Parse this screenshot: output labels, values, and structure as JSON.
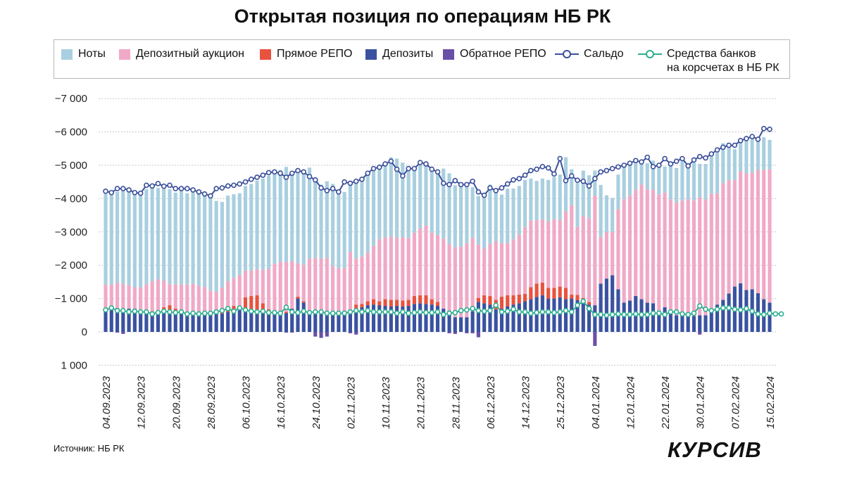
{
  "title": "Открытая позиция по операциям НБ РК",
  "source": "Источник: НБ РК",
  "brand": "КУРСИВ",
  "legend": {
    "notes": "Ноты",
    "auction": "Депозитный аукцион",
    "repo": "Прямое РЕПО",
    "deposits": "Депозиты",
    "reverse_repo": "Обратное РЕПО",
    "saldo": "Сальдо",
    "reserves_line1": "Средства банков",
    "reserves_line2": "на корсчетах в НБ РК"
  },
  "colors": {
    "notes": "#a9cfe0",
    "auction": "#f0a9c6",
    "repo": "#e8523f",
    "deposits": "#3a52a0",
    "reverse_repo": "#6a4fa6",
    "saldo": "#3b4f9a",
    "reserves": "#2fae91",
    "grid": "#c8c8c8"
  },
  "chart_data": {
    "type": "bar",
    "stacked": true,
    "y_axis_reversed": true,
    "ylim": [
      -7000,
      1000
    ],
    "yticks": [
      {
        "value": -7000,
        "label": "−7 000"
      },
      {
        "value": -6000,
        "label": "−6 000"
      },
      {
        "value": -5000,
        "label": "−5 000"
      },
      {
        "value": -4000,
        "label": "−4 000"
      },
      {
        "value": -3000,
        "label": "−3 000"
      },
      {
        "value": -2000,
        "label": "−2 000"
      },
      {
        "value": -1000,
        "label": "−1 000"
      },
      {
        "value": 0,
        "label": "0"
      },
      {
        "value": 1000,
        "label": "1 000"
      }
    ],
    "x_label_ticks": [
      {
        "index": 0,
        "label": "04.09.2023"
      },
      {
        "index": 6,
        "label": "12.09.2023"
      },
      {
        "index": 12,
        "label": "20.09.2023"
      },
      {
        "index": 18,
        "label": "28.09.2023"
      },
      {
        "index": 24,
        "label": "06.10.2023"
      },
      {
        "index": 30,
        "label": "16.10.2023"
      },
      {
        "index": 36,
        "label": "24.10.2023"
      },
      {
        "index": 42,
        "label": "02.11.2023"
      },
      {
        "index": 48,
        "label": "10.11.2023"
      },
      {
        "index": 54,
        "label": "20.11.2023"
      },
      {
        "index": 60,
        "label": "28.11.2023"
      },
      {
        "index": 66,
        "label": "06.12.2023"
      },
      {
        "index": 72,
        "label": "14.12.2023"
      },
      {
        "index": 78,
        "label": "25.12.2023"
      },
      {
        "index": 84,
        "label": "04.01.2024"
      },
      {
        "index": 90,
        "label": "12.01.2024"
      },
      {
        "index": 96,
        "label": "22.01.2024"
      },
      {
        "index": 102,
        "label": "30.01.2024"
      },
      {
        "index": 108,
        "label": "07.02.2024"
      },
      {
        "index": 114,
        "label": "15.02.2024"
      }
    ],
    "series": [
      {
        "name": "Депозиты",
        "key": "deposits",
        "values": [
          -620,
          -650,
          -720,
          -700,
          -700,
          -700,
          -650,
          -600,
          -580,
          -600,
          -580,
          -600,
          -620,
          -600,
          -580,
          -580,
          -560,
          -560,
          -600,
          -600,
          -550,
          -600,
          -640,
          -660,
          -660,
          -620,
          -640,
          -620,
          -600,
          -600,
          -600,
          -560,
          -700,
          -1000,
          -880,
          -650,
          -640,
          -620,
          -620,
          -580,
          -580,
          -600,
          -640,
          -680,
          -740,
          -800,
          -820,
          -800,
          -780,
          -760,
          -780,
          -760,
          -780,
          -840,
          -860,
          -840,
          -820,
          -780,
          -700,
          -640,
          -440,
          -440,
          -440,
          -620,
          -900,
          -860,
          -820,
          -680,
          -700,
          -760,
          -820,
          -860,
          -920,
          -980,
          -1050,
          -1100,
          -1000,
          -1000,
          -1040,
          -980,
          -1000,
          -950,
          -900,
          -820,
          -800,
          -1450,
          -1600,
          -1700,
          -1280,
          -880,
          -940,
          -1080,
          -980,
          -880,
          -860,
          -640,
          -740,
          -580,
          -500,
          -480,
          -480,
          -480,
          -500,
          -500,
          -620,
          -820,
          -960,
          -1150,
          -1360,
          -1460,
          -1260,
          -1280,
          -1160,
          -980,
          -880,
          -700,
          -960
        ]
      },
      {
        "name": "Прямое РЕПО",
        "key": "repo",
        "values": [
          0,
          0,
          0,
          0,
          0,
          0,
          0,
          0,
          -40,
          0,
          -160,
          -200,
          -80,
          0,
          0,
          0,
          0,
          0,
          0,
          0,
          -80,
          -120,
          -140,
          -120,
          -380,
          -460,
          -460,
          -240,
          -80,
          0,
          0,
          -40,
          0,
          -60,
          -40,
          0,
          0,
          0,
          0,
          0,
          0,
          0,
          0,
          -140,
          -100,
          -120,
          -160,
          -120,
          -200,
          -200,
          -180,
          -180,
          -180,
          -240,
          -240,
          -260,
          -160,
          -120,
          0,
          0,
          0,
          0,
          0,
          0,
          -120,
          -240,
          -260,
          -280,
          -360,
          -340,
          -280,
          -260,
          -220,
          -360,
          -400,
          -380,
          -320,
          -320,
          -320,
          -340,
          -120,
          -160,
          -120,
          -80,
          0,
          0,
          0,
          0,
          0,
          0,
          0,
          0,
          0,
          0,
          0,
          0,
          0,
          0,
          0,
          0,
          0,
          0,
          0,
          0,
          0,
          0,
          0,
          0,
          0,
          0,
          0,
          0,
          0,
          0,
          0,
          0,
          0
        ]
      },
      {
        "name": "Депозитный аукцион",
        "key": "auction",
        "values": [
          -800,
          -760,
          -760,
          -740,
          -700,
          -640,
          -680,
          -820,
          -900,
          -980,
          -800,
          -640,
          -720,
          -820,
          -840,
          -860,
          -820,
          -780,
          -640,
          -600,
          -700,
          -800,
          -840,
          -920,
          -800,
          -760,
          -780,
          -1000,
          -1220,
          -1440,
          -1500,
          -1500,
          -1420,
          -1000,
          -1100,
          -1550,
          -1580,
          -1580,
          -1600,
          -1400,
          -1320,
          -1320,
          -1760,
          -1380,
          -1420,
          -1460,
          -1600,
          -1860,
          -1860,
          -1900,
          -1860,
          -1900,
          -1860,
          -1900,
          -2000,
          -2100,
          -2000,
          -2000,
          -2100,
          -2000,
          -2100,
          -2120,
          -2220,
          -2200,
          -1600,
          -1400,
          -1560,
          -1760,
          -1600,
          -1560,
          -1680,
          -1800,
          -2000,
          -2000,
          -1900,
          -1900,
          -2000,
          -2060,
          -2000,
          -2300,
          -2680,
          -2040,
          -2460,
          -2500,
          -3280,
          -1400,
          -1400,
          -1300,
          -2400,
          -3100,
          -3150,
          -3180,
          -3440,
          -3400,
          -3400,
          -3480,
          -3440,
          -3400,
          -3380,
          -3460,
          -3500,
          -3460,
          -3540,
          -3460,
          -3520,
          -3340,
          -3500,
          -3400,
          -3200,
          -3360,
          -3500,
          -3500,
          -3700,
          -3880,
          -4000,
          -4280,
          -4320
        ]
      },
      {
        "name": "Ноты",
        "key": "notes",
        "values": [
          -2720,
          -2790,
          -2720,
          -2790,
          -2800,
          -2860,
          -2770,
          -2860,
          -2880,
          -2740,
          -2750,
          -2840,
          -2760,
          -2860,
          -2740,
          -2820,
          -2800,
          -2760,
          -2790,
          -2730,
          -2570,
          -2570,
          -2510,
          -2460,
          -2540,
          -2600,
          -2660,
          -2740,
          -2790,
          -2760,
          -2760,
          -2850,
          -2600,
          -2800,
          -2790,
          -2730,
          -2310,
          -2220,
          -2300,
          -2460,
          -2300,
          -2280,
          -2100,
          -2290,
          -2330,
          -2420,
          -2320,
          -2220,
          -2200,
          -2380,
          -2380,
          -2240,
          -2160,
          -1880,
          -1900,
          -1860,
          -1880,
          -1960,
          -2100,
          -2120,
          -1860,
          -1840,
          -1830,
          -1520,
          -1460,
          -1600,
          -1780,
          -1480,
          -1460,
          -1640,
          -1520,
          -1460,
          -1420,
          -1260,
          -1180,
          -1220,
          -1240,
          -1270,
          -1360,
          -1620,
          -1080,
          -1320,
          -1360,
          -1300,
          -760,
          -1560,
          -1100,
          -1020,
          -1040,
          -990,
          -980,
          -840,
          -630,
          -780,
          -880,
          -860,
          -780,
          -1120,
          -1040,
          -1180,
          -1060,
          -1140,
          -1000,
          -1080,
          -1120,
          -1220,
          -1200,
          -1040,
          -920,
          -880,
          -1040,
          -1020,
          -920,
          -980,
          -880,
          -960,
          -810
        ]
      },
      {
        "name": "Обратное РЕПО",
        "key": "reverse_repo",
        "values": [
          0,
          0,
          20,
          60,
          0,
          0,
          0,
          0,
          0,
          0,
          0,
          0,
          0,
          0,
          0,
          0,
          0,
          0,
          0,
          0,
          0,
          0,
          0,
          0,
          0,
          0,
          0,
          0,
          0,
          0,
          0,
          20,
          20,
          0,
          0,
          0,
          140,
          180,
          140,
          0,
          0,
          0,
          40,
          80,
          0,
          0,
          0,
          0,
          0,
          0,
          0,
          0,
          0,
          0,
          0,
          0,
          0,
          0,
          0,
          40,
          60,
          0,
          40,
          40,
          160,
          0,
          0,
          0,
          0,
          0,
          0,
          0,
          0,
          0,
          0,
          0,
          0,
          0,
          0,
          0,
          0,
          0,
          0,
          0,
          420,
          0,
          0,
          0,
          0,
          0,
          0,
          0,
          0,
          0,
          0,
          0,
          0,
          0,
          0,
          0,
          0,
          0,
          80,
          0,
          0,
          0,
          0,
          0,
          0,
          0,
          0,
          0,
          0,
          0,
          0,
          0,
          0
        ]
      },
      {
        "name": "Сальдо",
        "key": "saldo",
        "type": "line",
        "values": [
          -4220,
          -4180,
          -4300,
          -4300,
          -4260,
          -4180,
          -4160,
          -4400,
          -4380,
          -4450,
          -4370,
          -4400,
          -4300,
          -4300,
          -4300,
          -4260,
          -4200,
          -4140,
          -4080,
          -4300,
          -4320,
          -4380,
          -4400,
          -4440,
          -4500,
          -4580,
          -4640,
          -4700,
          -4780,
          -4800,
          -4760,
          -4640,
          -4760,
          -4840,
          -4800,
          -4660,
          -4560,
          -4320,
          -4240,
          -4300,
          -4200,
          -4500,
          -4460,
          -4520,
          -4580,
          -4760,
          -4900,
          -4940,
          -5040,
          -5120,
          -4880,
          -4680,
          -4900,
          -4900,
          -5080,
          -5040,
          -4880,
          -4800,
          -4460,
          -4420,
          -4540,
          -4420,
          -4420,
          -4520,
          -4200,
          -4100,
          -4320,
          -4240,
          -4320,
          -4440,
          -4560,
          -4600,
          -4700,
          -4840,
          -4880,
          -4960,
          -4920,
          -4740,
          -5200,
          -4540,
          -4680,
          -4550,
          -4520,
          -4380,
          -4600,
          -4800,
          -4840,
          -4900,
          -4950,
          -5000,
          -5060,
          -5140,
          -5100,
          -5240,
          -4960,
          -5000,
          -5200,
          -5040,
          -5120,
          -5200,
          -4980,
          -5160,
          -5260,
          -5220,
          -5340,
          -5460,
          -5540,
          -5600,
          -5600,
          -5740,
          -5800,
          -5860,
          -5780,
          -6100,
          -6080
        ]
      },
      {
        "name": "Средства банков на корсчетах в НБ РК",
        "key": "reserves",
        "type": "line",
        "values": [
          -660,
          -720,
          -640,
          -640,
          -600,
          -620,
          -600,
          -600,
          -540,
          -580,
          -620,
          -600,
          -580,
          -600,
          -540,
          -560,
          -540,
          -560,
          -560,
          -600,
          -640,
          -700,
          -620,
          -720,
          -660,
          -620,
          -600,
          -620,
          -580,
          -580,
          -560,
          -740,
          -600,
          -580,
          -620,
          -580,
          -600,
          -600,
          -560,
          -560,
          -560,
          -560,
          -600,
          -640,
          -600,
          -640,
          -600,
          -600,
          -600,
          -600,
          -560,
          -600,
          -560,
          -580,
          -600,
          -580,
          -580,
          -600,
          -520,
          -560,
          -580,
          -640,
          -660,
          -700,
          -640,
          -620,
          -640,
          -800,
          -600,
          -620,
          -680,
          -600,
          -600,
          -560,
          -580,
          -600,
          -600,
          -580,
          -600,
          -640,
          -600,
          -800,
          -920,
          -700,
          -520,
          -520,
          -500,
          -520,
          -540,
          -520,
          -520,
          -540,
          -520,
          -520,
          -560,
          -560,
          -520,
          -600,
          -600,
          -540,
          -520,
          -560,
          -780,
          -680,
          -640,
          -680,
          -720,
          -720,
          -680,
          -660,
          -700,
          -620,
          -540,
          -520,
          -560,
          -540,
          -540
        ]
      }
    ]
  }
}
